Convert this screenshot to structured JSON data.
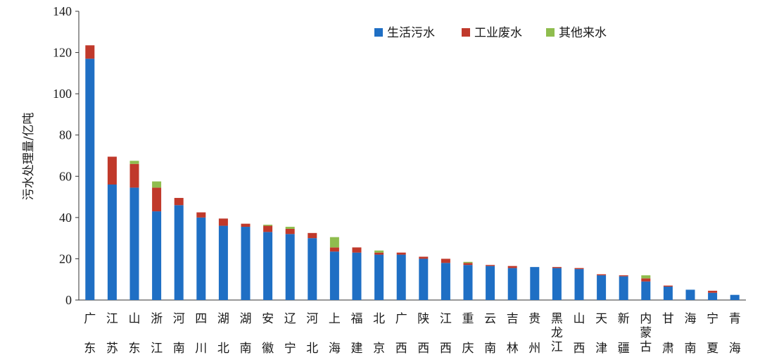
{
  "chart_data": {
    "type": "bar",
    "stacked": true,
    "ylabel": "污水处理量/亿吨",
    "ylim": [
      0,
      140
    ],
    "yticks": [
      0,
      20,
      40,
      60,
      80,
      100,
      120,
      140
    ],
    "grid": false,
    "legend_position": "top-right",
    "categories": [
      "广东",
      "江苏",
      "山东",
      "浙江",
      "河南",
      "四川",
      "湖北",
      "湖南",
      "安徽",
      "辽宁",
      "河北",
      "上海",
      "福建",
      "北京",
      "广西",
      "陕西",
      "江西",
      "重庆",
      "云南",
      "吉林",
      "贵州",
      "黑龙江",
      "山西",
      "天津",
      "新疆",
      "内蒙古",
      "甘肃",
      "海南",
      "宁夏",
      "青海"
    ],
    "series": [
      {
        "name": "生活污水",
        "color": "#1f6fc4",
        "values": [
          117,
          56,
          54.5,
          43,
          46,
          40,
          36,
          35.5,
          33,
          32,
          30,
          23.5,
          23,
          22,
          22,
          20,
          18,
          17,
          16.5,
          15.5,
          16,
          15.5,
          15,
          12,
          11.5,
          9,
          6.5,
          5,
          3.5,
          2.5
        ]
      },
      {
        "name": "工业废水",
        "color": "#c0392b",
        "values": [
          6.5,
          13.5,
          11.5,
          11.5,
          3.5,
          2.5,
          3.5,
          1.5,
          3,
          2.5,
          2.5,
          2,
          2.5,
          1,
          1,
          1,
          2,
          1,
          0.5,
          1,
          0,
          0.5,
          0.5,
          0.5,
          0.5,
          1.5,
          0.5,
          0,
          1,
          0
        ]
      },
      {
        "name": "其他来水",
        "color": "#8fbd4e",
        "values": [
          0,
          0,
          1.5,
          3,
          0,
          0,
          0,
          0,
          0.5,
          1,
          0,
          5,
          0,
          1,
          0,
          0,
          0,
          0.5,
          0,
          0,
          0,
          0,
          0,
          0,
          0,
          1.5,
          0,
          0,
          0,
          0
        ]
      }
    ]
  }
}
